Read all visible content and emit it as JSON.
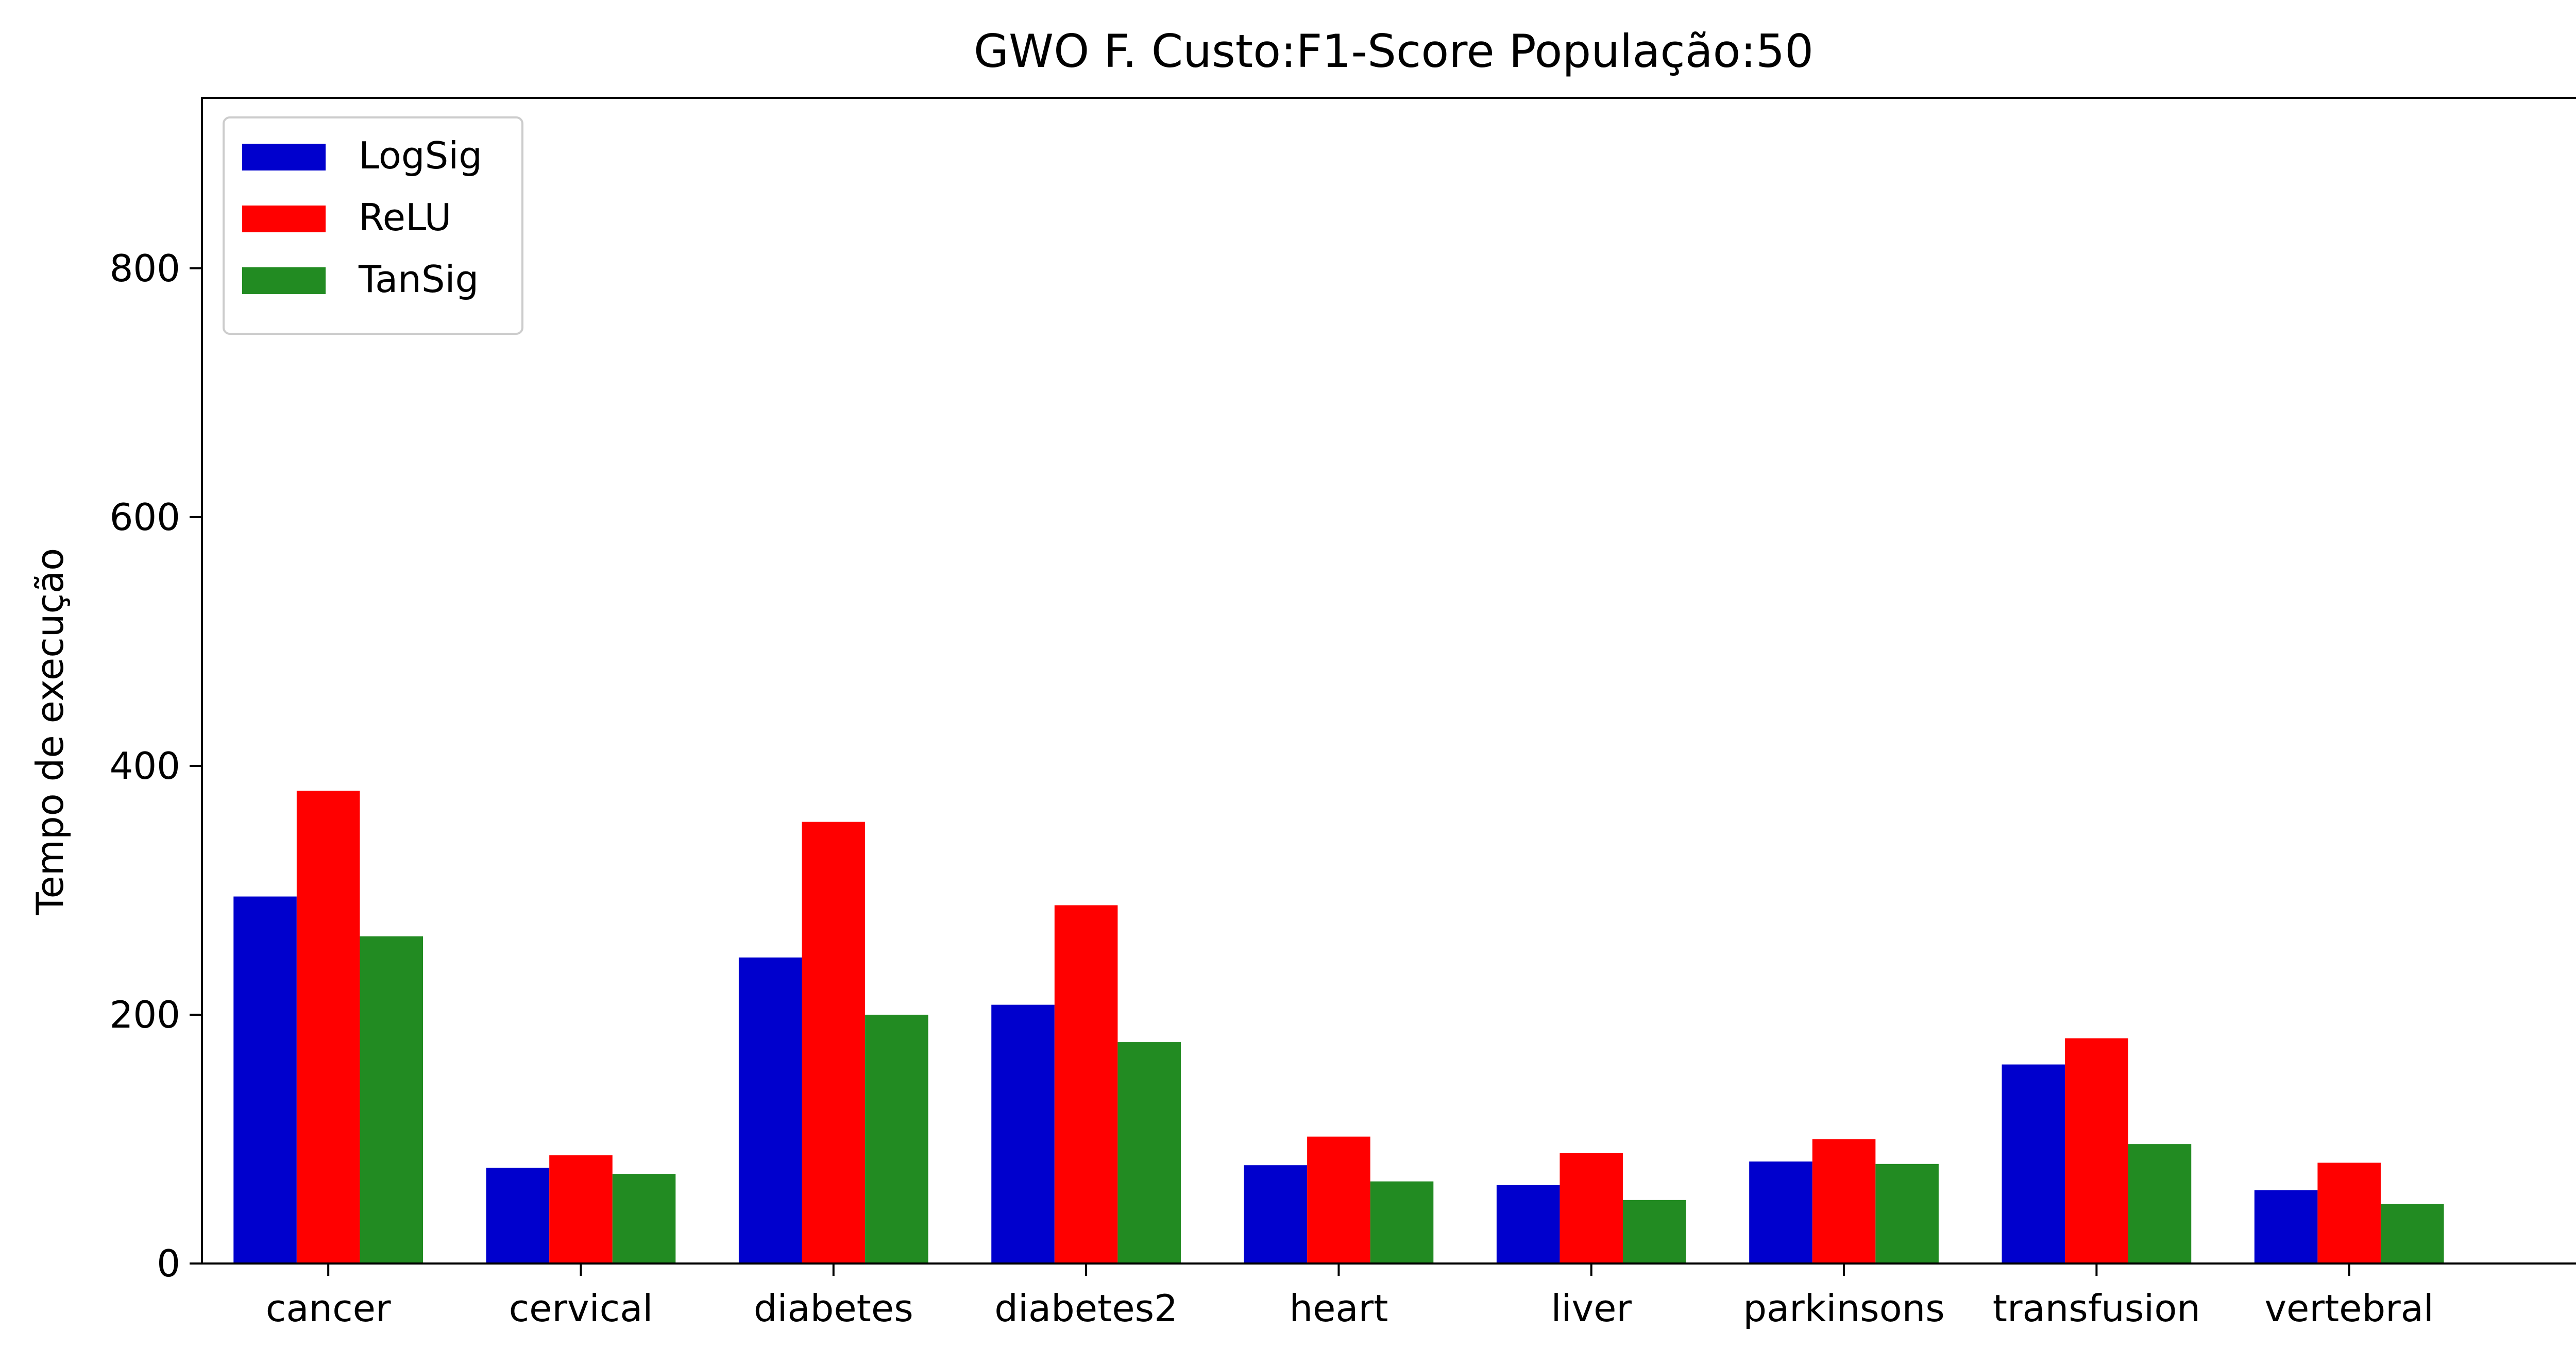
{
  "chart_data": {
    "type": "bar",
    "title": "GWO F. Custo:F1-Score População:50",
    "xlabel": "",
    "ylabel": "Tempo de execução",
    "categories": [
      "cancer",
      "cervical",
      "diabetes",
      "diabetes2",
      "heart",
      "liver",
      "parkinsons",
      "transfusion",
      "vertebral"
    ],
    "series": [
      {
        "name": "LogSig",
        "color": "#0000cd",
        "values": [
          295,
          77,
          246,
          208,
          79,
          63,
          82,
          160,
          59
        ]
      },
      {
        "name": "ReLU",
        "color": "#ff0000",
        "values": [
          380,
          87,
          355,
          288,
          102,
          89,
          100,
          181,
          81
        ]
      },
      {
        "name": "TanSig",
        "color": "#228b22",
        "values": [
          263,
          72,
          200,
          178,
          66,
          51,
          80,
          96,
          48
        ]
      }
    ],
    "ylim": [
      0,
      937
    ],
    "yticks": [
      0,
      200,
      400,
      600,
      800
    ],
    "legend_position": "top-left",
    "grid": false
  }
}
